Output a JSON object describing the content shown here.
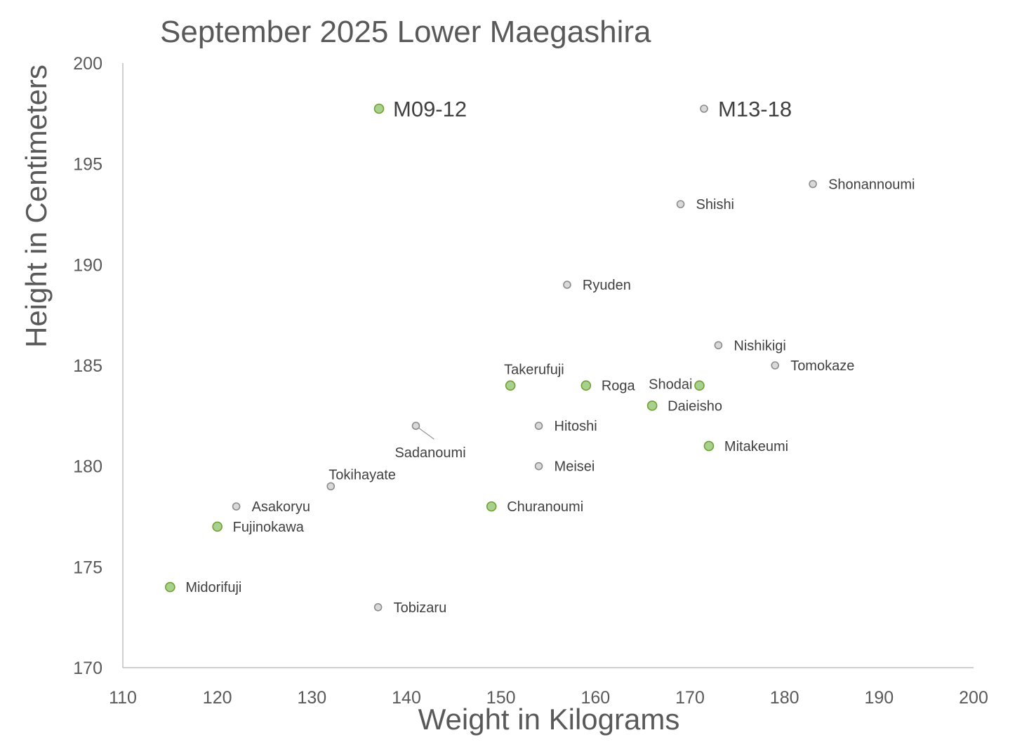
{
  "chart_data": {
    "type": "scatter",
    "title": "September 2025 Lower Maegashira",
    "xlabel": "Weight in Kilograms",
    "ylabel": "Height in Centimeters",
    "xlim": [
      110,
      200
    ],
    "ylim": [
      170,
      200
    ],
    "xticks": [
      "110",
      "120",
      "130",
      "140",
      "150",
      "160",
      "170",
      "180",
      "190",
      "200"
    ],
    "yticks": [
      "170",
      "175",
      "180",
      "185",
      "190",
      "195",
      "200"
    ],
    "grid": false,
    "legend_position": "top, inside plot area",
    "series": [
      {
        "name": "M09-12",
        "color": "#a9d18e",
        "edge_color": "#70a030",
        "points": [
          {
            "label": "Takerufuji",
            "x": 151,
            "y": 184
          },
          {
            "label": "Roga",
            "x": 159,
            "y": 184
          },
          {
            "label": "Shodai",
            "x": 171,
            "y": 184
          },
          {
            "label": "Daieisho",
            "x": 166,
            "y": 183
          },
          {
            "label": "Mitakeumi",
            "x": 172,
            "y": 181
          },
          {
            "label": "Churanoumi",
            "x": 149,
            "y": 178
          },
          {
            "label": "Fujinokawa",
            "x": 120,
            "y": 177
          },
          {
            "label": "Midorifuji",
            "x": 115,
            "y": 174
          }
        ]
      },
      {
        "name": "M13-18",
        "color": "#d9d9d9",
        "edge_color": "#8c8c8c",
        "points": [
          {
            "label": "Shonannoumi",
            "x": 183,
            "y": 194
          },
          {
            "label": "Shishi",
            "x": 169,
            "y": 193
          },
          {
            "label": "Ryuden",
            "x": 157,
            "y": 189
          },
          {
            "label": "Nishikigi",
            "x": 173,
            "y": 186
          },
          {
            "label": "Tomokaze",
            "x": 179,
            "y": 185
          },
          {
            "label": "Sadanoumi",
            "x": 141,
            "y": 182
          },
          {
            "label": "Hitoshi",
            "x": 154,
            "y": 182
          },
          {
            "label": "Meisei",
            "x": 154,
            "y": 180
          },
          {
            "label": "Tokihayate",
            "x": 132,
            "y": 179
          },
          {
            "label": "Asakoryu",
            "x": 122,
            "y": 178
          },
          {
            "label": "Tobizaru",
            "x": 137,
            "y": 173
          }
        ]
      }
    ]
  }
}
